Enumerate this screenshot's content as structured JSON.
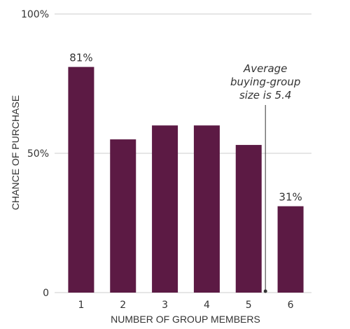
{
  "chart_data": {
    "type": "bar",
    "title": "",
    "xlabel": "NUMBER OF GROUP MEMBERS",
    "ylabel": "CHANCE OF PURCHASE",
    "categories": [
      "1",
      "2",
      "3",
      "4",
      "5",
      "6"
    ],
    "values": [
      81,
      55,
      60,
      60,
      53,
      31
    ],
    "data_labels": [
      "81%",
      "",
      "",
      "",
      "",
      "31%"
    ],
    "ylim": [
      0,
      100
    ],
    "yticks": [
      0,
      50,
      100
    ],
    "ytick_labels": [
      "0",
      "50%",
      "100%"
    ],
    "grid": true,
    "bar_color": "#5c1a44",
    "gridline_color": "#cccccc",
    "annotation": {
      "lines": [
        "Average",
        "buying-group",
        "size is 5.4"
      ],
      "x_value": 5.4
    }
  }
}
